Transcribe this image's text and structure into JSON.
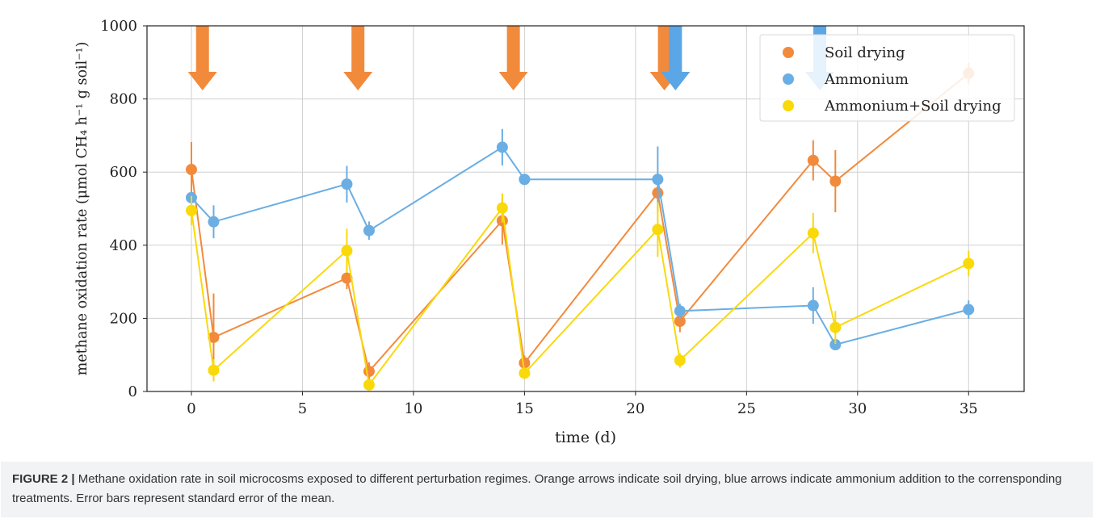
{
  "colors": {
    "soil_drying": "#f28a3c",
    "ammonium": "#6aaee4",
    "ammonium_soil_drying": "#f9d90a",
    "arrow_orange": "#f28a3c",
    "arrow_blue": "#5aa6e6"
  },
  "chart_data": {
    "type": "line",
    "xlabel": "time (d)",
    "ylabel": "methane oxidation rate (μmol CH₄ h⁻¹ g soil⁻¹)",
    "xlim": [
      -2,
      37.5
    ],
    "ylim": [
      0,
      1000
    ],
    "xticks": [
      "0",
      "5",
      "10",
      "15",
      "20",
      "25",
      "30",
      "35"
    ],
    "yticks": [
      "0",
      "200",
      "400",
      "600",
      "800",
      "1000"
    ],
    "grid": true,
    "legend_position": "top-right",
    "series": [
      {
        "name": "Soil drying",
        "color": "#f28a3c",
        "x": [
          0,
          1,
          7,
          8,
          14,
          15,
          21,
          22,
          28,
          29,
          35
        ],
        "y": [
          607,
          148,
          310,
          55,
          467,
          78,
          543,
          192,
          632,
          575,
          870
        ],
        "err": [
          75,
          120,
          30,
          25,
          65,
          20,
          20,
          30,
          55,
          85,
          30
        ]
      },
      {
        "name": "Ammonium",
        "color": "#6aaee4",
        "x": [
          0,
          1,
          7,
          8,
          14,
          15,
          21,
          22,
          28,
          29,
          35
        ],
        "y": [
          530,
          464,
          567,
          440,
          668,
          580,
          580,
          220,
          235,
          128,
          224
        ],
        "err": [
          15,
          45,
          50,
          25,
          50,
          10,
          90,
          20,
          50,
          15,
          25
        ]
      },
      {
        "name": "Ammonium+Soil drying",
        "color": "#f9d90a",
        "x": [
          0,
          1,
          7,
          8,
          14,
          15,
          21,
          22,
          28,
          29,
          35
        ],
        "y": [
          495,
          58,
          385,
          18,
          502,
          50,
          443,
          85,
          433,
          175,
          350
        ],
        "err": [
          40,
          30,
          60,
          15,
          40,
          15,
          75,
          20,
          55,
          45,
          35
        ]
      }
    ],
    "arrows": [
      {
        "x": 0.5,
        "color": "orange"
      },
      {
        "x": 7.5,
        "color": "orange"
      },
      {
        "x": 14.5,
        "color": "orange"
      },
      {
        "x": 21.3,
        "color": "orange"
      },
      {
        "x": 21.8,
        "color": "blue"
      },
      {
        "x": 28.3,
        "color": "blue"
      }
    ]
  },
  "caption": {
    "label": "FIGURE 2 |",
    "text": " Methane oxidation rate in soil microcosms exposed to different perturbation regimes. Orange arrows indicate soil drying, blue arrows indicate ammonium addition to the corrensponding treatments. Error bars represent standard error of the mean."
  }
}
